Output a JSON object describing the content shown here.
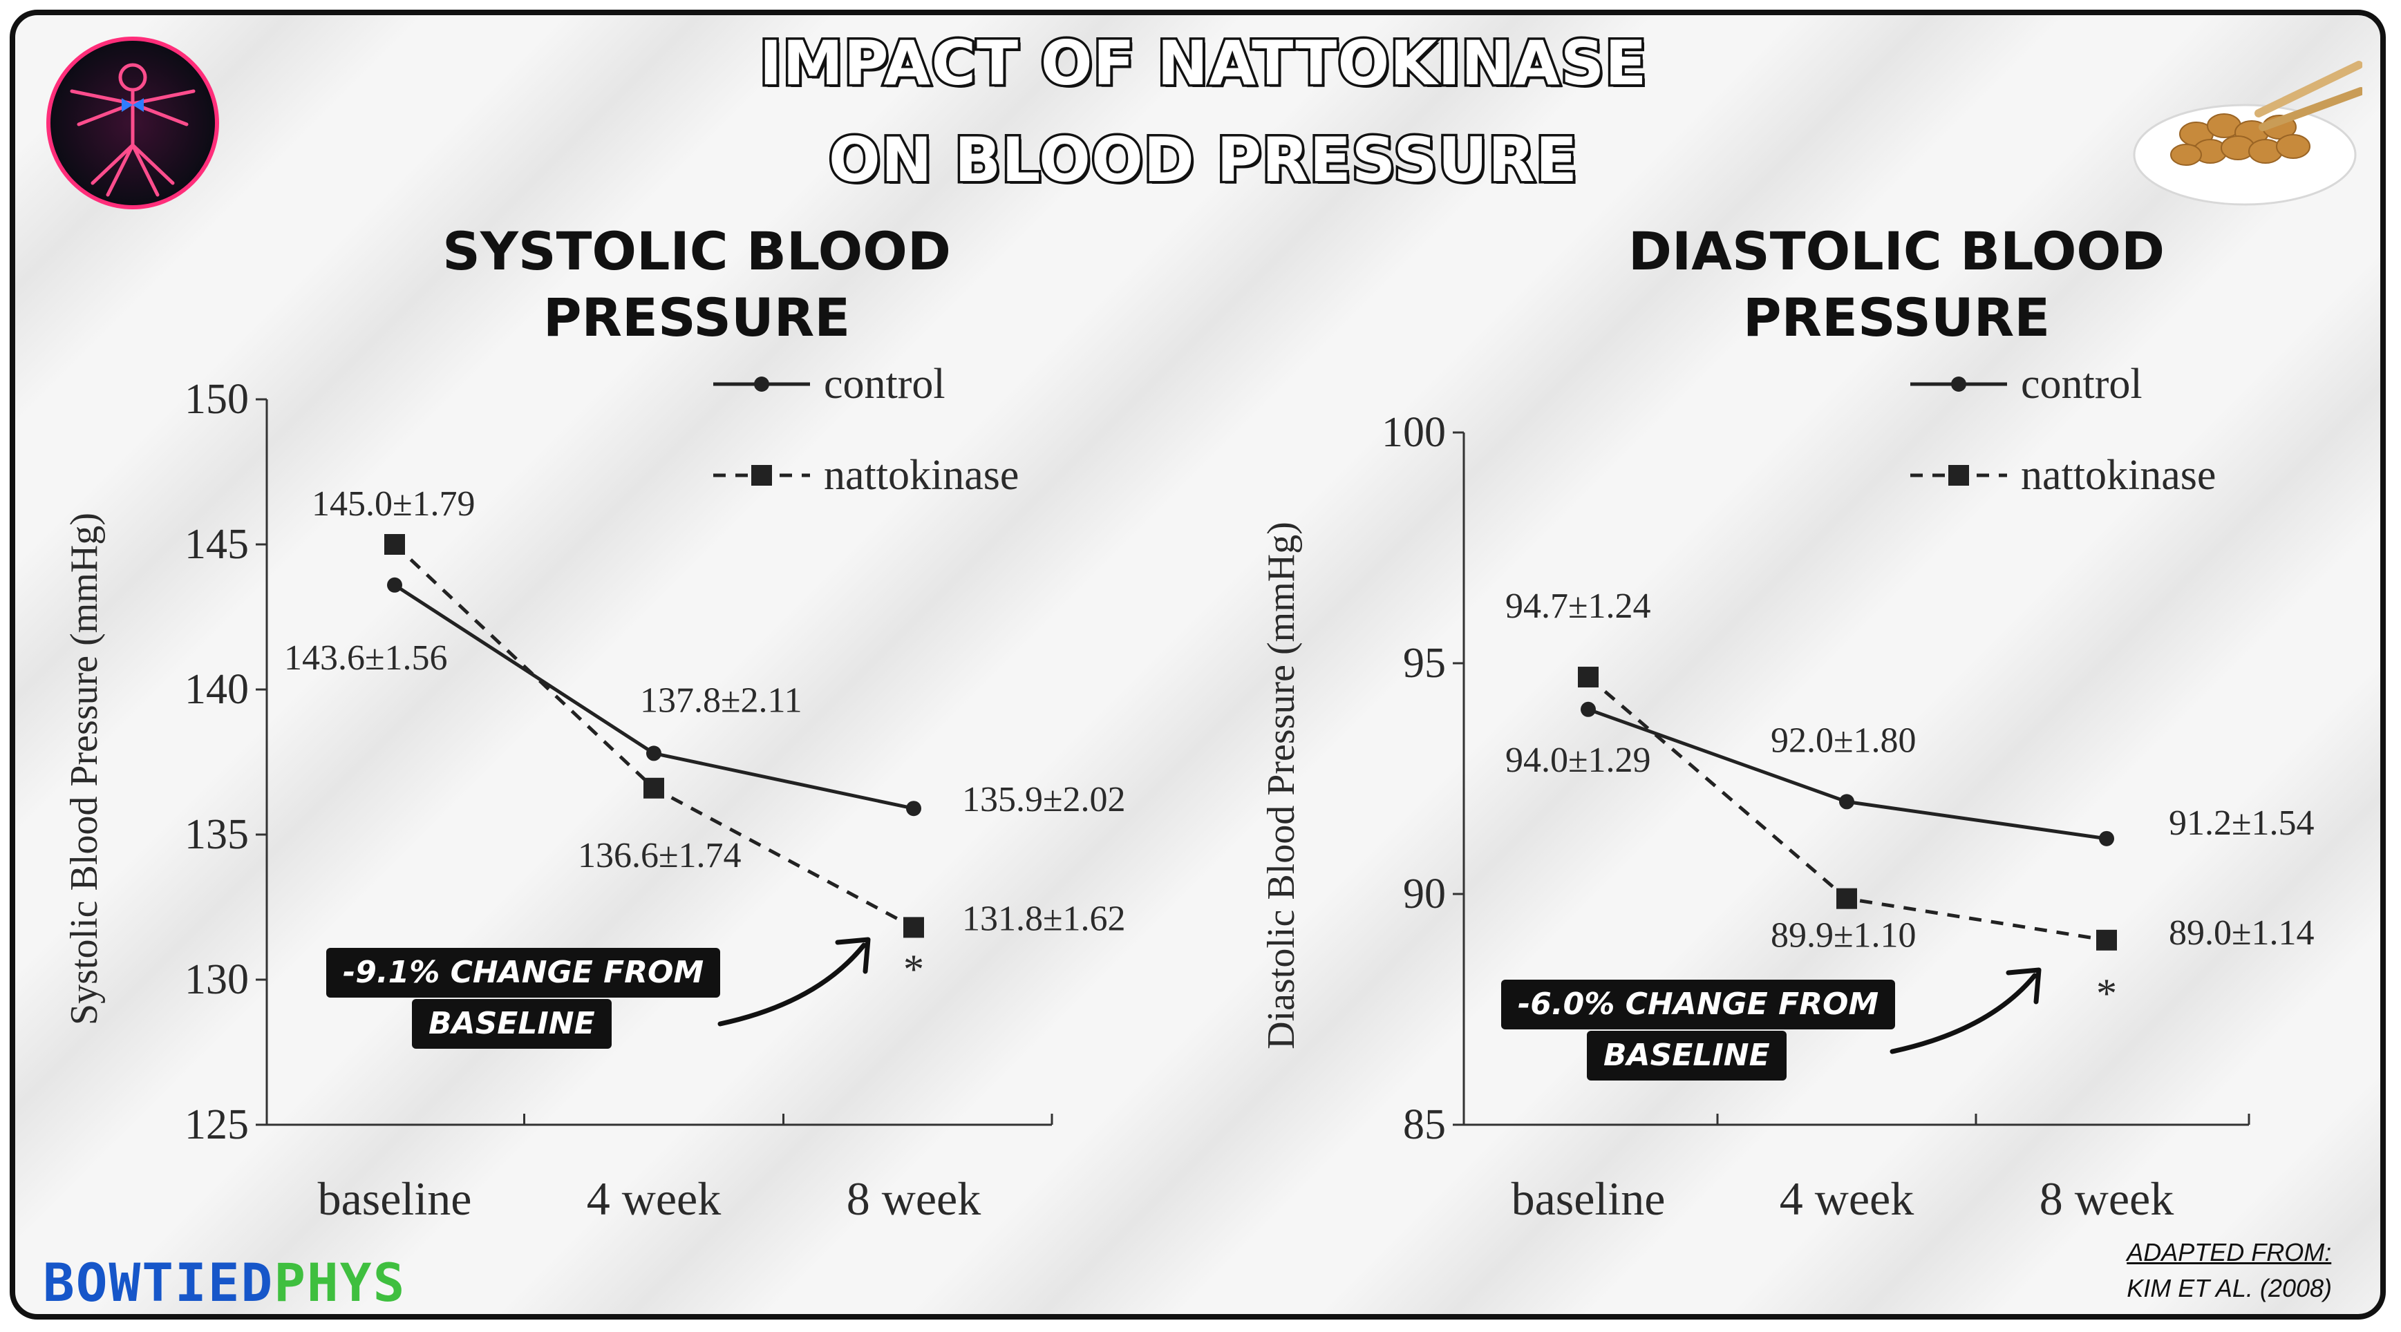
{
  "title": {
    "line1": "IMPACT OF NATTOKINASE",
    "line2": "ON BLOOD PRESSURE"
  },
  "branding": {
    "name_part1": "BOWTIED",
    "name_part2": "PHYS",
    "blue": "#1656c9",
    "green": "#3fbf3f",
    "logo_icon": "vitruvian-man-logo-icon",
    "food_icon": "natto-bowl-icon"
  },
  "source": {
    "line1": "ADAPTED FROM:",
    "line2": "KIM ET AL. (2008)"
  },
  "chart_data": [
    {
      "type": "line",
      "title_line1": "SYSTOLIC BLOOD",
      "title_line2": "PRESSURE",
      "ylabel": "Systolic Blood Pressure (mmHg)",
      "xlabel": "",
      "categories": [
        "baseline",
        "4 week",
        "8 week"
      ],
      "ylim": [
        125,
        150
      ],
      "yticks": [
        "125",
        "130",
        "135",
        "140",
        "145",
        "150"
      ],
      "series": [
        {
          "name": "control",
          "style": "solid",
          "marker": "circle",
          "values": [
            143.6,
            137.8,
            135.9
          ],
          "labels": [
            "143.6±1.56",
            "137.8±2.11",
            "135.9±2.02"
          ]
        },
        {
          "name": "nattokinase",
          "style": "dashed",
          "marker": "square",
          "values": [
            145.0,
            136.6,
            131.8
          ],
          "labels": [
            "145.0±1.79",
            "136.6±1.74",
            "131.8±1.62"
          ]
        }
      ],
      "significance_mark": "*",
      "legend": "top-right",
      "callout_line1": "-9.1% CHANGE FROM",
      "callout_line2": "BASELINE"
    },
    {
      "type": "line",
      "title_line1": "DIASTOLIC BLOOD",
      "title_line2": "PRESSURE",
      "ylabel": "Diastolic Blood Pressure (mmHg)",
      "xlabel": "",
      "categories": [
        "baseline",
        "4 week",
        "8 week"
      ],
      "ylim": [
        85,
        100
      ],
      "yticks": [
        "85",
        "90",
        "95",
        "100"
      ],
      "series": [
        {
          "name": "control",
          "style": "solid",
          "marker": "circle",
          "values": [
            94.0,
            92.0,
            91.2
          ],
          "labels": [
            "94.0±1.29",
            "92.0±1.80",
            "91.2±1.54"
          ]
        },
        {
          "name": "nattokinase",
          "style": "dashed",
          "marker": "square",
          "values": [
            94.7,
            89.9,
            89.0
          ],
          "labels": [
            "94.7±1.24",
            "89.9±1.10",
            "89.0±1.14"
          ]
        }
      ],
      "significance_mark": "*",
      "legend": "top-right",
      "callout_line1": "-6.0% CHANGE FROM",
      "callout_line2": "BASELINE"
    }
  ]
}
